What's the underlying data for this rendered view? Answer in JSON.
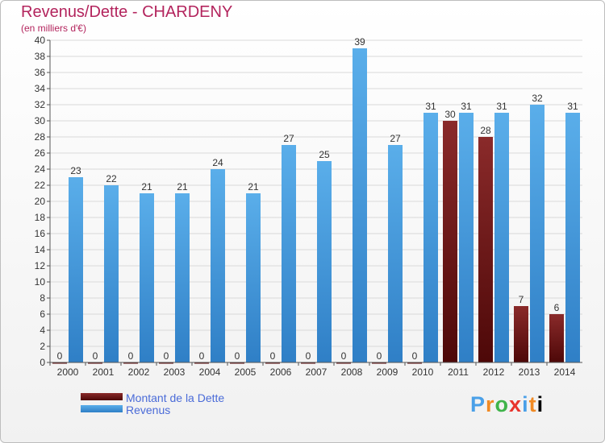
{
  "chart_data": {
    "type": "bar",
    "title": "Revenus/Dette - CHARDENY",
    "subtitle": "(en milliers d'€)",
    "categories": [
      "2000",
      "2001",
      "2002",
      "2003",
      "2004",
      "2005",
      "2006",
      "2007",
      "2008",
      "2009",
      "2010",
      "2011",
      "2012",
      "2013",
      "2014"
    ],
    "series": [
      {
        "name": "Montant de la Dette",
        "color": "#7a1c1c",
        "values": [
          0,
          0,
          0,
          0,
          0,
          0,
          0,
          0,
          0,
          0,
          0,
          30,
          28,
          7,
          6
        ]
      },
      {
        "name": "Revenus",
        "color": "#4ea4e6",
        "values": [
          23,
          22,
          21,
          21,
          24,
          21,
          27,
          25,
          39,
          27,
          31,
          31,
          31,
          32,
          31
        ]
      }
    ],
    "ylim": [
      0,
      40
    ],
    "yticks": [
      0,
      2,
      4,
      6,
      8,
      10,
      12,
      14,
      16,
      18,
      20,
      22,
      24,
      26,
      28,
      30,
      32,
      34,
      36,
      38,
      40
    ],
    "xlabel": "",
    "ylabel": "",
    "legend_position": "bottom-left"
  },
  "branding": {
    "logo_letters": [
      "P",
      "r",
      "o",
      "x",
      "i",
      "t",
      "i"
    ]
  }
}
